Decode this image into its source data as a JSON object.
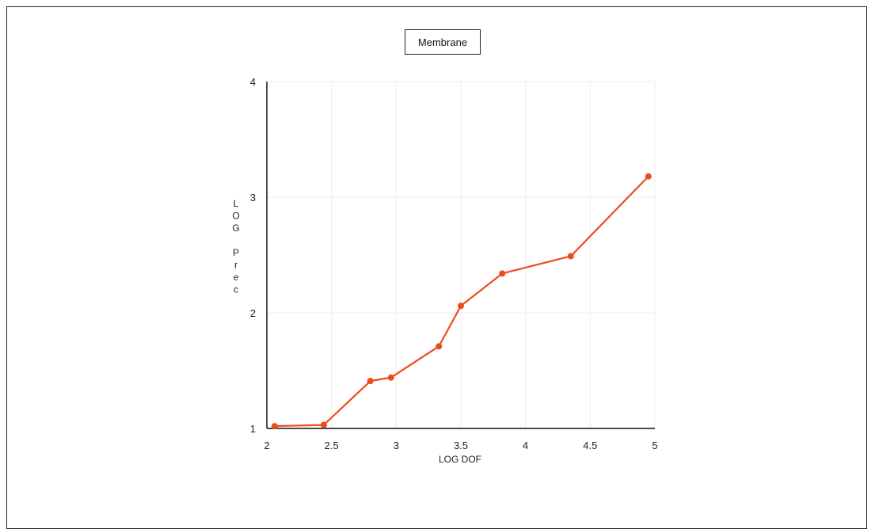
{
  "legend": {
    "label": "Membrane"
  },
  "chart_data": {
    "type": "line",
    "xlabel": "LOG DOF",
    "ylabel": "LOG Prec",
    "xlim": [
      2,
      5
    ],
    "ylim": [
      1,
      4
    ],
    "xticks": [
      "2",
      "2.5",
      "3",
      "3.5",
      "4",
      "4.5",
      "5"
    ],
    "yticks": [
      "1",
      "2",
      "3",
      "4"
    ],
    "grid": true,
    "legend_position": "top-center",
    "series": [
      {
        "name": "Membrane",
        "color": "#ee4b1c",
        "x": [
          2.06,
          2.44,
          2.8,
          2.96,
          3.33,
          3.5,
          3.82,
          4.35,
          4.95
        ],
        "y": [
          1.02,
          1.03,
          1.41,
          1.44,
          1.71,
          2.06,
          2.34,
          2.49,
          3.18
        ]
      }
    ]
  }
}
